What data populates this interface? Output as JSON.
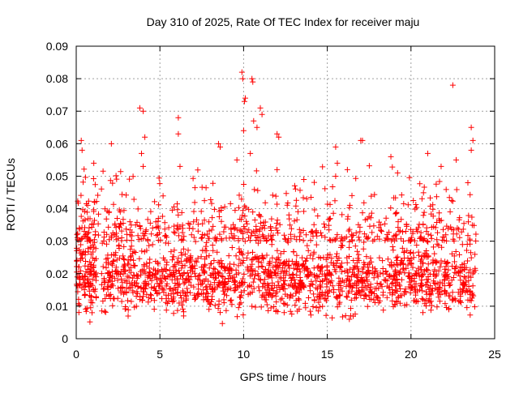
{
  "chart_data": {
    "type": "scatter",
    "title": "Day 310 of 2025, Rate Of TEC Index for receiver maju",
    "xlabel": "GPS time / hours",
    "ylabel": "ROTI / TECUs",
    "xlim": [
      0,
      25
    ],
    "ylim": [
      0,
      0.09
    ],
    "x_ticks": [
      "0",
      "5",
      "10",
      "15",
      "20",
      "25"
    ],
    "x_tick_values": [
      0,
      5,
      10,
      15,
      20,
      25
    ],
    "y_ticks": [
      "0",
      "0.01",
      "0.02",
      "0.03",
      "0.04",
      "0.05",
      "0.06",
      "0.07",
      "0.08",
      "0.09"
    ],
    "y_tick_values": [
      0,
      0.01,
      0.02,
      0.03,
      0.04,
      0.05,
      0.06,
      0.07,
      0.08,
      0.09
    ],
    "grid": true,
    "marker": "+",
    "marker_color": "#ff0000",
    "series": [
      {
        "name": "ROTI",
        "description_of_distribution": "dense band 0.005-0.03 over 0-24h, gap ~1.2-1.5h",
        "outliers": [
          {
            "x": 0.3,
            "y": 0.061
          },
          {
            "x": 0.35,
            "y": 0.058
          },
          {
            "x": 1.05,
            "y": 0.054
          },
          {
            "x": 2.1,
            "y": 0.06
          },
          {
            "x": 3.8,
            "y": 0.071
          },
          {
            "x": 4.0,
            "y": 0.07
          },
          {
            "x": 4.1,
            "y": 0.062
          },
          {
            "x": 3.9,
            "y": 0.057
          },
          {
            "x": 4.0,
            "y": 0.053
          },
          {
            "x": 6.1,
            "y": 0.068
          },
          {
            "x": 6.1,
            "y": 0.063
          },
          {
            "x": 6.2,
            "y": 0.053
          },
          {
            "x": 8.5,
            "y": 0.06
          },
          {
            "x": 8.6,
            "y": 0.059
          },
          {
            "x": 9.6,
            "y": 0.055
          },
          {
            "x": 9.9,
            "y": 0.082
          },
          {
            "x": 9.95,
            "y": 0.08
          },
          {
            "x": 10.1,
            "y": 0.074
          },
          {
            "x": 10.05,
            "y": 0.073
          },
          {
            "x": 10.0,
            "y": 0.064
          },
          {
            "x": 10.5,
            "y": 0.08
          },
          {
            "x": 10.55,
            "y": 0.079
          },
          {
            "x": 10.6,
            "y": 0.067
          },
          {
            "x": 10.8,
            "y": 0.065
          },
          {
            "x": 11.0,
            "y": 0.071
          },
          {
            "x": 11.1,
            "y": 0.069
          },
          {
            "x": 10.4,
            "y": 0.057
          },
          {
            "x": 12.0,
            "y": 0.063
          },
          {
            "x": 12.1,
            "y": 0.062
          },
          {
            "x": 12.0,
            "y": 0.052
          },
          {
            "x": 15.5,
            "y": 0.059
          },
          {
            "x": 15.6,
            "y": 0.054
          },
          {
            "x": 15.5,
            "y": 0.05
          },
          {
            "x": 16.2,
            "y": 0.052
          },
          {
            "x": 17.0,
            "y": 0.061
          },
          {
            "x": 17.1,
            "y": 0.061
          },
          {
            "x": 18.8,
            "y": 0.056
          },
          {
            "x": 19.2,
            "y": 0.051
          },
          {
            "x": 21.0,
            "y": 0.057
          },
          {
            "x": 21.8,
            "y": 0.053
          },
          {
            "x": 22.5,
            "y": 0.078
          },
          {
            "x": 22.7,
            "y": 0.055
          },
          {
            "x": 23.6,
            "y": 0.065
          },
          {
            "x": 23.7,
            "y": 0.061
          },
          {
            "x": 23.6,
            "y": 0.058
          },
          {
            "x": 23.4,
            "y": 0.048
          }
        ]
      }
    ]
  }
}
